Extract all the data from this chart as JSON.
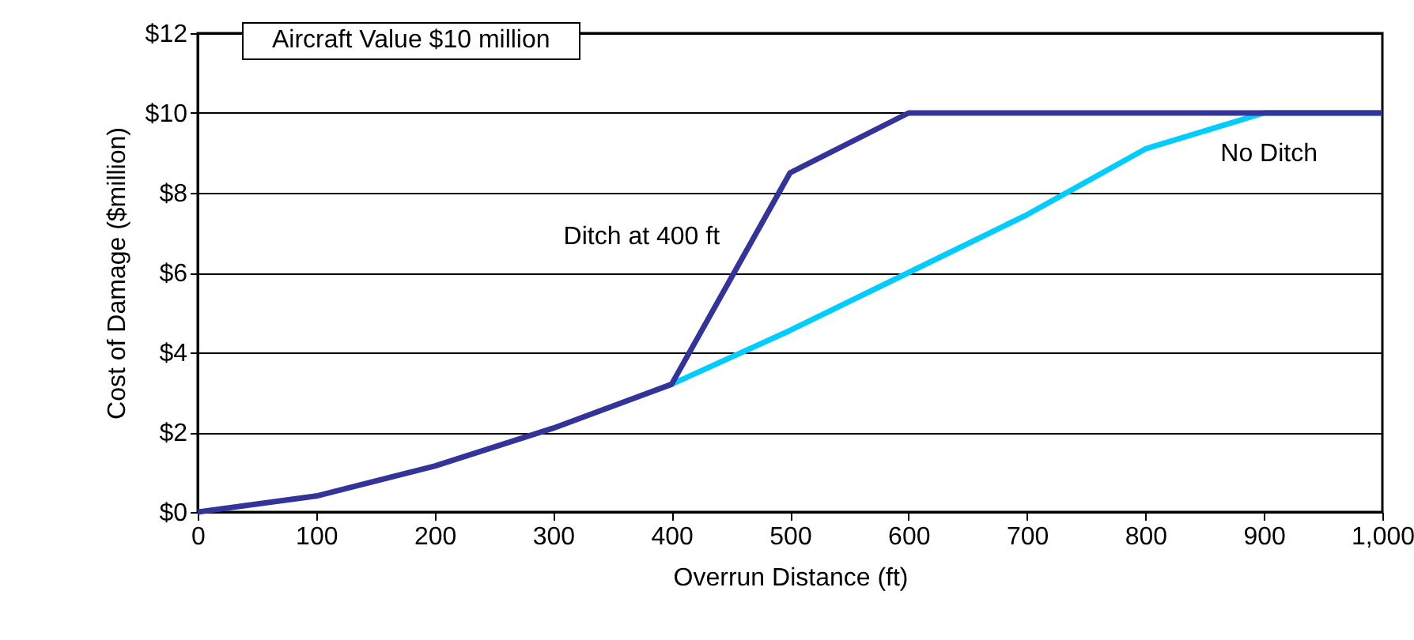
{
  "chart_data": {
    "type": "line",
    "annotations": [
      "Aircraft Value $10 million"
    ],
    "xlabel": "Overrun Distance (ft)",
    "ylabel": "Cost of Damage ($million)",
    "x": [
      0,
      100,
      200,
      300,
      400,
      500,
      600,
      700,
      800,
      900,
      1000
    ],
    "series": [
      {
        "name": "No Ditch",
        "color": "#00ccff",
        "values": [
          null,
          null,
          null,
          null,
          3.2,
          4.55,
          6.0,
          7.45,
          9.1,
          10,
          10
        ]
      },
      {
        "name": "Ditch at 400 ft",
        "color": "#333399",
        "values": [
          0,
          0.4,
          1.15,
          2.1,
          3.2,
          8.5,
          10,
          10,
          10,
          10,
          10
        ]
      }
    ],
    "xlim": [
      0,
      1000
    ],
    "xticks": [
      0,
      100,
      200,
      300,
      400,
      500,
      600,
      700,
      800,
      900,
      {
        "value": 1000,
        "label": "1,000"
      }
    ],
    "ylim": [
      0,
      12
    ],
    "yticks": [
      {
        "value": 0,
        "label": "$0"
      },
      {
        "value": 2,
        "label": "$2"
      },
      {
        "value": 4,
        "label": "$4"
      },
      {
        "value": 6,
        "label": "$6"
      },
      {
        "value": 8,
        "label": "$8"
      },
      {
        "value": 10,
        "label": "$10"
      },
      {
        "value": 12,
        "label": "$12"
      }
    ],
    "grid": "y",
    "legend": false,
    "marker": "none",
    "line_style": "solid"
  }
}
